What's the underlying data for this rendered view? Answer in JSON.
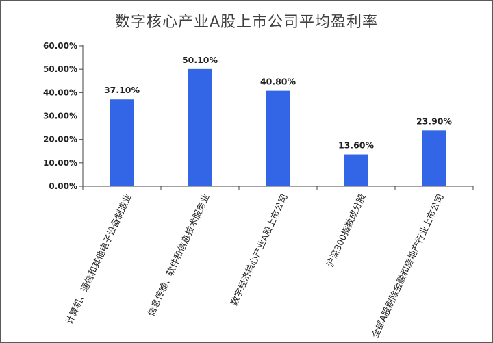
{
  "chart_data": {
    "type": "bar",
    "title": "数字核心产业A股上市公司平均盈利率",
    "categories": [
      "计算机、通信和其他电子设备制造业",
      "信息传输、软件和信息技术服务业",
      "数字经济核心产业A股上市公司",
      "沪深300指数成分股",
      "全部A股剔除金融和房地产行业上市公司"
    ],
    "values": [
      37.1,
      50.1,
      40.8,
      13.6,
      23.9
    ],
    "data_labels": [
      "37.10%",
      "50.10%",
      "40.80%",
      "13.60%",
      "23.90%"
    ],
    "yticks": [
      "0.00%",
      "10.00%",
      "20.00%",
      "30.00%",
      "40.00%",
      "50.00%",
      "60.00%"
    ],
    "ylim": [
      0,
      60
    ],
    "bar_color": "#3366e6",
    "grid": false,
    "legend": "none"
  }
}
